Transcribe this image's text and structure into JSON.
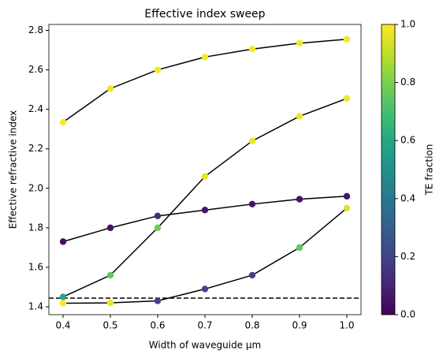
{
  "chart_data": {
    "type": "scatter",
    "title": "Effective index sweep",
    "x_label": "Width of waveguide µm",
    "y_label": "Effective refractive index",
    "colorbar_label": "TE fraction",
    "colormap": "viridis",
    "line_color": "#000000",
    "x": [
      0.4,
      0.5,
      0.6,
      0.7,
      0.8,
      0.9,
      1.0
    ],
    "series": [
      {
        "values": [
          2.335,
          2.505,
          2.6,
          2.665,
          2.705,
          2.735,
          2.755
        ],
        "te": [
          1.0,
          0.99,
          0.99,
          0.99,
          0.99,
          0.99,
          0.99
        ]
      },
      {
        "values": [
          1.45,
          1.56,
          1.8,
          2.06,
          2.24,
          2.365,
          2.455
        ],
        "te": [
          0.6,
          0.75,
          0.78,
          0.97,
          0.98,
          0.98,
          0.98
        ]
      },
      {
        "values": [
          1.73,
          1.8,
          1.86,
          1.89,
          1.92,
          1.945,
          1.96
        ],
        "te": [
          0.04,
          0.05,
          0.12,
          0.06,
          0.05,
          0.05,
          0.05
        ]
      },
      {
        "values": [
          1.418,
          1.42,
          1.43,
          1.49,
          1.56,
          1.7,
          1.9
        ],
        "te": [
          1.0,
          0.98,
          0.2,
          0.2,
          0.2,
          0.75,
          0.95
        ]
      }
    ],
    "hline": 1.444,
    "xlim": [
      0.37,
      1.03
    ],
    "xticks": [
      0.4,
      0.5,
      0.6,
      0.7,
      0.8,
      0.9,
      {
        "value": 1.0,
        "label": "1.0"
      }
    ],
    "ylim": [
      1.36,
      2.83
    ],
    "yticks": [
      1.4,
      1.6,
      1.8,
      {
        "value": 2.0,
        "label": "2.0"
      },
      2.2,
      2.4,
      2.6,
      2.8
    ],
    "clim": [
      0,
      1
    ],
    "cticks": [
      {
        "value": 0,
        "label": "0.0"
      },
      0.2,
      0.4,
      0.6,
      0.8,
      {
        "value": 1,
        "label": "1.0"
      }
    ]
  }
}
